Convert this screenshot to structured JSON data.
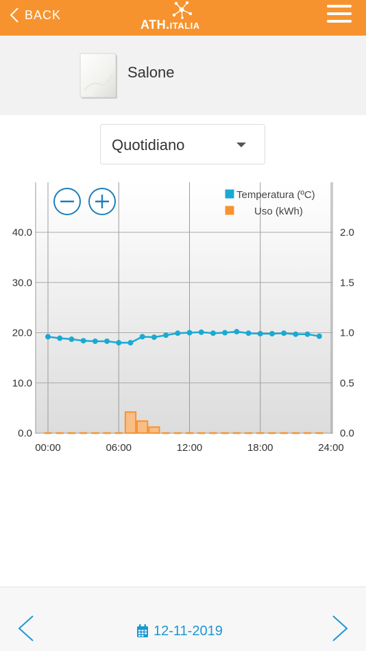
{
  "header": {
    "back_label": "BACK",
    "logo_main": "ATH.",
    "logo_sub": "ITALIA",
    "bg_color": "#f7932e"
  },
  "device": {
    "name": "Salone"
  },
  "period": {
    "selected": "Quotidiano"
  },
  "chart_data": {
    "type": "line",
    "legend": [
      "Temperatura (ºC)",
      "Uso (kWh)"
    ],
    "legend_position": "top-right",
    "grid": true,
    "x_ticks": [
      "00:00",
      "06:00",
      "12:00",
      "18:00",
      "24:00"
    ],
    "y_left_ticks": [
      "0.0",
      "10.0",
      "20.0",
      "30.0",
      "40.0"
    ],
    "y_right_ticks": [
      "0.0",
      "0.5",
      "1.0",
      "1.5",
      "2.0"
    ],
    "y_left_range": [
      0,
      40
    ],
    "y_right_range": [
      0,
      2
    ],
    "x_range": [
      0,
      24
    ],
    "series": [
      {
        "name": "Temperatura (ºC)",
        "axis": "left",
        "type": "line",
        "color": "#1aa9d3",
        "x": [
          0,
          1,
          2,
          3,
          4,
          5,
          6,
          7,
          8,
          9,
          10,
          11,
          12,
          13,
          14,
          15,
          16,
          17,
          18,
          19,
          20,
          21,
          22,
          23
        ],
        "values": [
          19.2,
          18.9,
          18.7,
          18.4,
          18.3,
          18.3,
          18.0,
          18.0,
          19.2,
          19.1,
          19.5,
          19.9,
          20.0,
          20.1,
          19.9,
          20.0,
          20.2,
          19.9,
          19.8,
          19.8,
          19.9,
          19.7,
          19.7,
          19.3
        ]
      },
      {
        "name": "Uso (kWh)",
        "axis": "right",
        "type": "bar",
        "color": "#f7932e",
        "x": [
          0,
          1,
          2,
          3,
          4,
          5,
          6,
          7,
          8,
          9,
          10,
          11,
          12,
          13,
          14,
          15,
          16,
          17,
          18,
          19,
          20,
          21,
          22,
          23
        ],
        "values": [
          0,
          0,
          0,
          0,
          0,
          0,
          0,
          0.21,
          0.12,
          0.06,
          0,
          0,
          0,
          0,
          0,
          0,
          0,
          0,
          0,
          0,
          0,
          0,
          0,
          0
        ]
      }
    ]
  },
  "footer": {
    "date": "12-11-2019"
  }
}
